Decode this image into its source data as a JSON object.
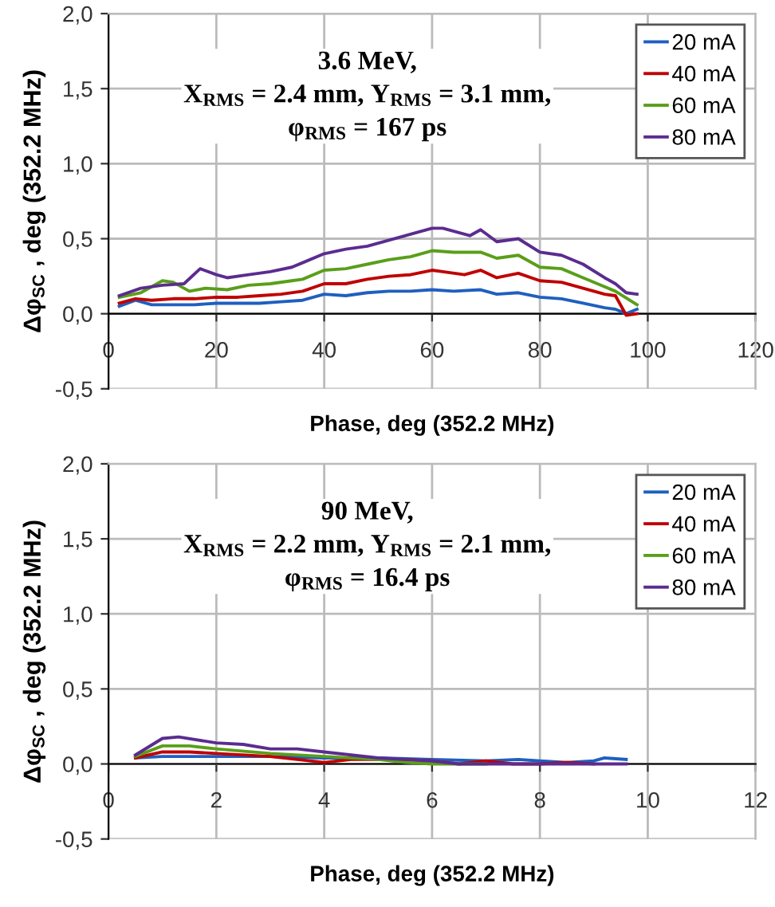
{
  "chart_data": [
    {
      "type": "line",
      "title": "3.6 MeV,\nX$_{RMS}$ = 2.4 mm, Y$_{RMS}$ = 3.1 mm,\nφ$_{RMS}$ = 167 ps",
      "xlabel": "Phase, deg (352.2 MHz)",
      "ylabel": "Δφ$_{SC}$ , deg (352.2 MHz)",
      "xlim": [
        0,
        120
      ],
      "xticks": [
        0,
        20,
        40,
        60,
        80,
        100,
        120
      ],
      "ylim": [
        -0.5,
        2.0
      ],
      "yticks": [
        {
          "value": -0.5,
          "label": "-0,5"
        },
        {
          "value": 0,
          "label": "0,0"
        },
        {
          "value": 0.5,
          "label": "0,5"
        },
        {
          "value": 1.0,
          "label": "1,0"
        },
        {
          "value": 1.5,
          "label": "1,5"
        },
        {
          "value": 2.0,
          "label": "2,0"
        }
      ],
      "grid": true,
      "legend": "top right",
      "marker": "none",
      "line_style": "solid",
      "series": [
        {
          "name": "20 mA",
          "color": "#1f5fbf",
          "x": [
            2,
            5,
            8,
            12,
            16,
            20,
            24,
            28,
            32,
            36,
            40,
            44,
            48,
            52,
            56,
            60,
            64,
            69,
            72,
            76,
            80,
            84,
            88,
            92,
            94,
            96,
            98
          ],
          "values": [
            0.05,
            0.09,
            0.06,
            0.06,
            0.06,
            0.07,
            0.07,
            0.07,
            0.08,
            0.09,
            0.13,
            0.12,
            0.14,
            0.15,
            0.15,
            0.16,
            0.15,
            0.16,
            0.13,
            0.14,
            0.11,
            0.1,
            0.07,
            0.04,
            0.03,
            0.0,
            0.03
          ]
        },
        {
          "name": "40 mA",
          "color": "#c00000",
          "x": [
            2,
            5,
            8,
            12,
            16,
            20,
            24,
            28,
            32,
            36,
            40,
            44,
            48,
            52,
            56,
            60,
            62,
            66,
            69,
            72,
            76,
            80,
            84,
            88,
            92,
            94,
            96,
            98
          ],
          "values": [
            0.07,
            0.1,
            0.09,
            0.1,
            0.1,
            0.11,
            0.11,
            0.12,
            0.13,
            0.15,
            0.2,
            0.2,
            0.23,
            0.25,
            0.26,
            0.29,
            0.28,
            0.26,
            0.29,
            0.24,
            0.27,
            0.22,
            0.21,
            0.17,
            0.13,
            0.12,
            -0.01,
            0.0
          ]
        },
        {
          "name": "60 mA",
          "color": "#5a9e1a",
          "x": [
            2,
            6,
            10,
            12,
            15,
            18,
            22,
            26,
            30,
            34,
            36,
            40,
            44,
            48,
            52,
            56,
            60,
            64,
            69,
            72,
            76,
            80,
            84,
            88,
            92,
            94,
            98
          ],
          "values": [
            0.11,
            0.14,
            0.22,
            0.21,
            0.15,
            0.17,
            0.16,
            0.19,
            0.2,
            0.22,
            0.23,
            0.29,
            0.3,
            0.33,
            0.36,
            0.38,
            0.42,
            0.41,
            0.41,
            0.37,
            0.39,
            0.31,
            0.3,
            0.24,
            0.18,
            0.15,
            0.06
          ]
        },
        {
          "name": "80 mA",
          "color": "#5b2c8f",
          "x": [
            2,
            6,
            10,
            14,
            17,
            20,
            22,
            26,
            30,
            34,
            36,
            40,
            44,
            48,
            52,
            56,
            60,
            62,
            67,
            69,
            72,
            76,
            80,
            84,
            88,
            92,
            94,
            96,
            98
          ],
          "values": [
            0.12,
            0.17,
            0.19,
            0.2,
            0.3,
            0.26,
            0.24,
            0.26,
            0.28,
            0.31,
            0.34,
            0.4,
            0.43,
            0.45,
            0.49,
            0.53,
            0.57,
            0.57,
            0.52,
            0.56,
            0.48,
            0.5,
            0.41,
            0.39,
            0.33,
            0.24,
            0.2,
            0.14,
            0.13
          ]
        }
      ]
    },
    {
      "type": "line",
      "title": "90 MeV,\nX$_{RMS}$ = 2.2 mm, Y$_{RMS}$ = 2.1 mm,\nφ$_{RMS}$ = 16.4 ps",
      "xlabel": "Phase, deg (352.2 MHz)",
      "ylabel": "Δφ$_{SC}$ , deg (352.2 MHz)",
      "xlim": [
        0,
        12
      ],
      "xticks": [
        0,
        2,
        4,
        6,
        8,
        10,
        12
      ],
      "ylim": [
        -0.5,
        2.0
      ],
      "yticks": [
        {
          "value": -0.5,
          "label": "-0,5"
        },
        {
          "value": 0,
          "label": "0,0"
        },
        {
          "value": 0.5,
          "label": "0,5"
        },
        {
          "value": 1.0,
          "label": "1,0"
        },
        {
          "value": 1.5,
          "label": "1,5"
        },
        {
          "value": 2.0,
          "label": "2,0"
        }
      ],
      "grid": true,
      "legend": "top right",
      "marker": "none",
      "line_style": "solid",
      "series": [
        {
          "name": "20 mA",
          "color": "#1f5fbf",
          "x": [
            0.5,
            1,
            2,
            3,
            4,
            5,
            6,
            7,
            7.6,
            8,
            8.5,
            9,
            9.2,
            9.6
          ],
          "values": [
            0.04,
            0.05,
            0.05,
            0.05,
            0.04,
            0.04,
            0.03,
            0.02,
            0.03,
            0.02,
            0.01,
            0.02,
            0.04,
            0.03
          ]
        },
        {
          "name": "40 mA",
          "color": "#c00000",
          "x": [
            0.5,
            1,
            1.5,
            2,
            3,
            4,
            4.5,
            5,
            5.5,
            6,
            6.5,
            7,
            7.5,
            8,
            8.5,
            9
          ],
          "values": [
            0.04,
            0.08,
            0.08,
            0.07,
            0.05,
            0.01,
            0.03,
            0.03,
            0.03,
            0.02,
            0.0,
            0.02,
            0.0,
            0.0,
            0.01,
            0.0
          ]
        },
        {
          "name": "60 mA",
          "color": "#5a9e1a",
          "x": [
            0.5,
            1,
            1.5,
            2,
            3,
            4,
            5,
            5.5,
            6,
            7
          ],
          "values": [
            0.05,
            0.12,
            0.12,
            0.1,
            0.07,
            0.05,
            0.03,
            0.01,
            0.0,
            0.0
          ]
        },
        {
          "name": "80 mA",
          "color": "#5b2c8f",
          "x": [
            0.5,
            1,
            1.3,
            2,
            2.5,
            3,
            3.5,
            4,
            5,
            6,
            6.5,
            7,
            8,
            9,
            9.6
          ],
          "values": [
            0.06,
            0.17,
            0.18,
            0.14,
            0.13,
            0.1,
            0.1,
            0.08,
            0.04,
            0.02,
            0.0,
            0.0,
            0.0,
            0.0,
            0.0
          ]
        }
      ]
    }
  ]
}
